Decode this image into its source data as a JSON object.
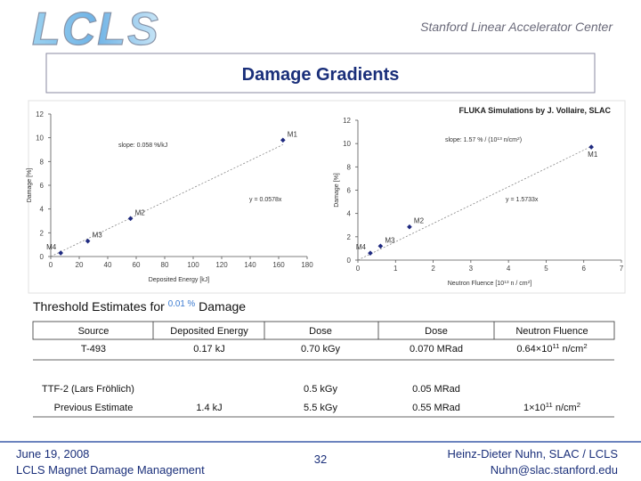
{
  "header": {
    "logo": "LCLS",
    "org": "Stanford Linear Accelerator Center"
  },
  "title": "Damage Gradients",
  "chart_data": [
    {
      "type": "scatter",
      "xlabel": "Deposited Energy [kJ]",
      "ylabel": "Damage [%]",
      "xlim": [
        0,
        180
      ],
      "ylim": [
        0,
        12
      ],
      "xticks": [
        0,
        20,
        40,
        60,
        80,
        100,
        120,
        140,
        160,
        180
      ],
      "yticks": [
        0,
        2,
        4,
        6,
        8,
        10,
        12
      ],
      "x": [
        163,
        56,
        26,
        7
      ],
      "values": [
        9.8,
        3.2,
        1.3,
        0.3
      ],
      "point_labels": [
        "M1",
        "M2",
        "M3",
        "M4"
      ],
      "color": "#1f2a80",
      "slope_label": "slope: 0.058 %/kJ",
      "trendline": {
        "slope": 0.0578,
        "label": "y = 0.0578x"
      }
    },
    {
      "type": "scatter",
      "title": "FLUKA Simulations by J. Vollaire, SLAC",
      "xlabel": [
        "Neutron Fluence [10",
        "13",
        " n / cm",
        "2",
        "]"
      ],
      "ylabel": "Damage [%]",
      "xlim": [
        0,
        7
      ],
      "ylim": [
        0,
        12
      ],
      "xticks": [
        0,
        1,
        2,
        3,
        4,
        5,
        6,
        7
      ],
      "yticks": [
        0,
        2,
        4,
        6,
        8,
        10,
        12
      ],
      "x": [
        6.2,
        1.37,
        0.6,
        0.33
      ],
      "values": [
        9.7,
        2.85,
        1.2,
        0.6
      ],
      "point_labels": [
        "M1",
        "M2",
        "M3",
        "M4"
      ],
      "color": "#1f2a80",
      "slope_label": [
        "slope: 1.57 % / (10",
        "13",
        " n/cm",
        "2",
        ")"
      ],
      "trendline": {
        "slope": 1.5733,
        "label": "y = 1.5733x"
      }
    }
  ],
  "table": {
    "caption": [
      "Threshold Estimates for ",
      "0.01 %",
      " Damage"
    ],
    "header": [
      "Source",
      "Deposited Energy",
      "Dose",
      "Dose",
      "Neutron Fluence"
    ],
    "rows": [
      [
        "T-493",
        "0.17 kJ",
        "0.70 kGy",
        "0.070 MRad",
        [
          "0.64×10",
          "11",
          " n/cm",
          "2"
        ]
      ],
      [
        "TTF-2 (Lars Fröhlich)",
        null,
        "0.5 kGy",
        "0.05 MRad",
        null
      ],
      [
        "Previous Estimate",
        "1.4 kJ",
        "5.5 kGy",
        "0.55 MRad",
        [
          "1×10",
          "11",
          " n/cm",
          "2"
        ]
      ]
    ]
  },
  "footer": {
    "date": "June 19, 2008",
    "event": "LCLS Magnet Damage Management",
    "page": "32",
    "author": "Heinz-Dieter Nuhn, SLAC / LCLS",
    "email": "Nuhn@slac.stanford.edu"
  }
}
